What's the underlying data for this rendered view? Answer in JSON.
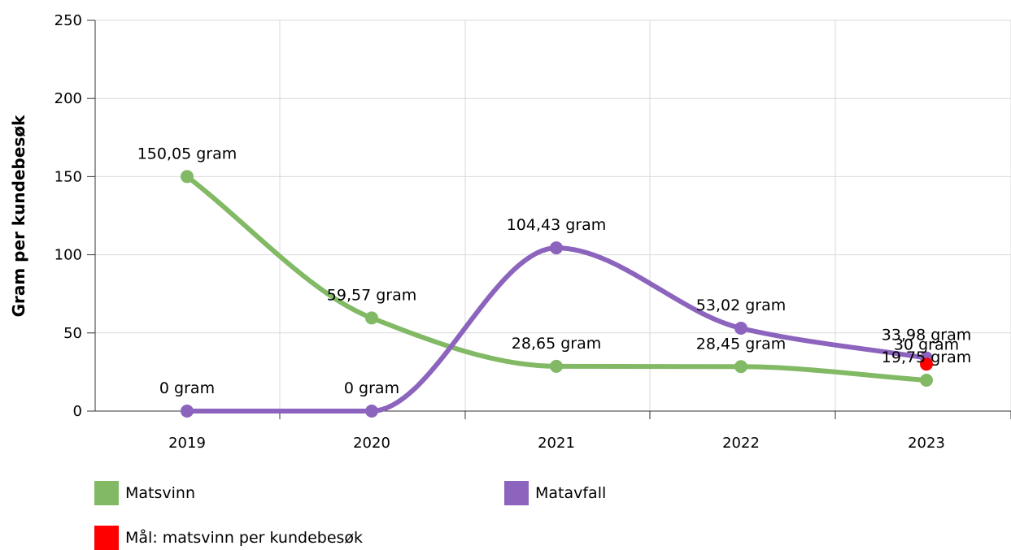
{
  "chart_data": {
    "type": "line",
    "title": "",
    "xlabel": "",
    "ylabel": "Gram per kundebesøk",
    "categories": [
      "2019",
      "2020",
      "2021",
      "2022",
      "2023"
    ],
    "ylim": [
      0,
      250
    ],
    "yticks": [
      "0",
      "50",
      "100",
      "150",
      "200",
      "250"
    ],
    "grid": true,
    "legend_position": "bottom",
    "series": [
      {
        "name": "Matsvinn",
        "color": "#82b965",
        "values": [
          150.05,
          59.57,
          28.65,
          28.45,
          19.75
        ],
        "labels": [
          "150,05 gram",
          "59,57 gram",
          "28,65 gram",
          "28,45 gram",
          "19,75 gram"
        ]
      },
      {
        "name": "Matavfall",
        "color": "#8c64be",
        "values": [
          0,
          0,
          104.43,
          53.02,
          33.98
        ],
        "labels": [
          "0 gram",
          "0 gram",
          "104,43 gram",
          "53,02 gram",
          "33,98 gram"
        ]
      }
    ],
    "target": {
      "name": "Mål: matsvinn per kundebesøk",
      "color": "#ff0000",
      "category": "2023",
      "value": 30,
      "label": "30 gram"
    }
  }
}
